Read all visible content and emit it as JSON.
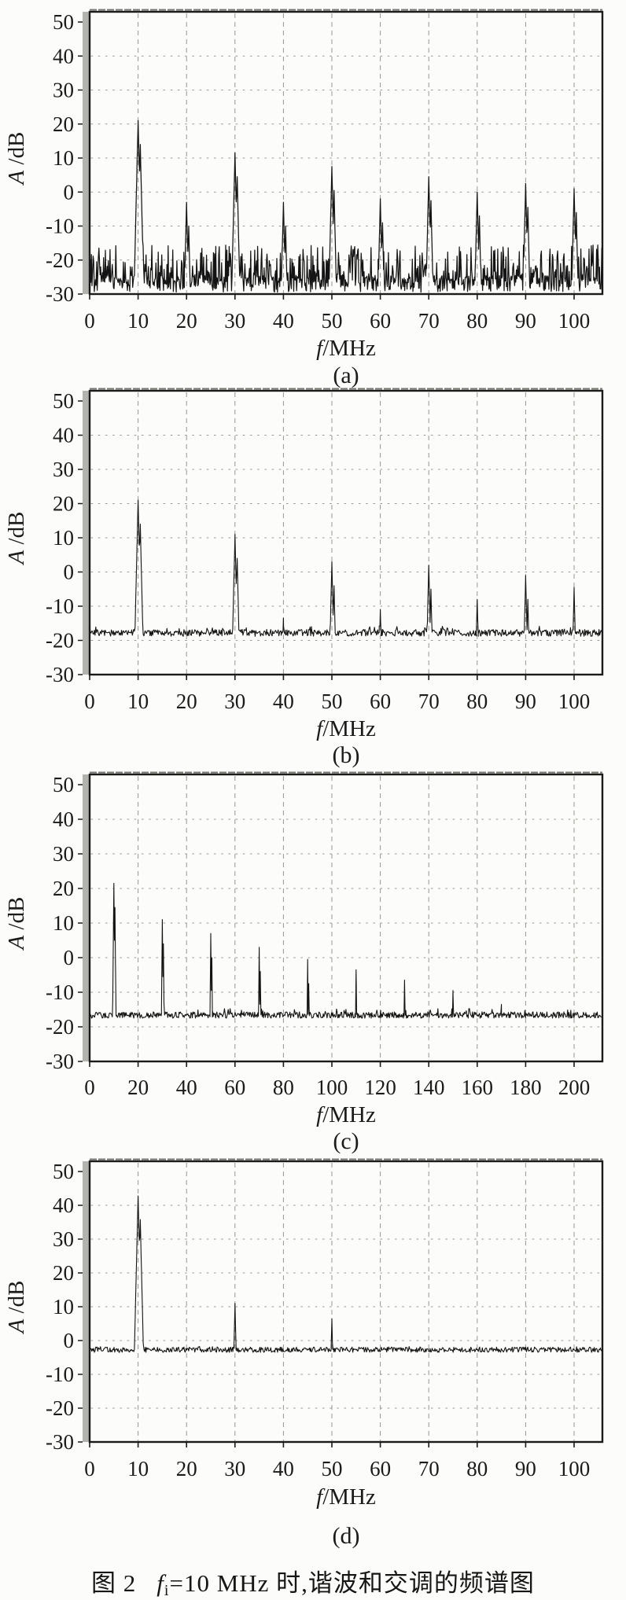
{
  "figure": {
    "caption": {
      "label": "图 2",
      "f_var": "f",
      "f_sub": "i",
      "text": "=10 MHz 时,谐波和交调的频谱图"
    },
    "ink_color": "#1b1b1b",
    "grid_color": "#979790",
    "paper_color": "#fcfcfa"
  },
  "chart_data": [
    {
      "id": "a",
      "type": "line",
      "sublabel": "(a)",
      "xlabel_var": "f",
      "xlabel_unit": "/MHz",
      "ylabel_var": "A",
      "ylabel_unit": " /dB",
      "x_ticks": [
        0,
        10,
        20,
        30,
        40,
        50,
        60,
        70,
        80,
        90,
        100
      ],
      "y_ticks": [
        50,
        40,
        30,
        20,
        10,
        0,
        -10,
        -20,
        -30
      ],
      "ylim": [
        -30,
        50
      ],
      "x_tick_max": 100,
      "grid": "dashed-vertical dotted-horizontal",
      "legend": "none",
      "noise_floor_dB": -27,
      "noise_character": "dense noise band -30..-15 dB with sideband bushes",
      "peaks": [
        {
          "f": 10,
          "a_dB": 21
        },
        {
          "f": 20,
          "a_dB": -3
        },
        {
          "f": 30,
          "a_dB": 11.5
        },
        {
          "f": 40,
          "a_dB": -3
        },
        {
          "f": 50,
          "a_dB": 7.5
        },
        {
          "f": 60,
          "a_dB": -2
        },
        {
          "f": 70,
          "a_dB": 4.5
        },
        {
          "f": 80,
          "a_dB": 0
        },
        {
          "f": 90,
          "a_dB": 2.5
        },
        {
          "f": 100,
          "a_dB": 1
        }
      ]
    },
    {
      "id": "b",
      "type": "line",
      "sublabel": "(b)",
      "xlabel_var": "f",
      "xlabel_unit": "/MHz",
      "ylabel_var": "A",
      "ylabel_unit": " /dB",
      "x_ticks": [
        0,
        10,
        20,
        30,
        40,
        50,
        60,
        70,
        80,
        90,
        100
      ],
      "y_ticks": [
        50,
        40,
        30,
        20,
        10,
        0,
        -10,
        -20,
        -30
      ],
      "ylim": [
        -30,
        50
      ],
      "x_tick_max": 100,
      "grid": "dashed-vertical dotted-horizontal",
      "legend": "none",
      "noise_floor_dB": -17.8,
      "noise_character": "flat thin noise floor",
      "peaks": [
        {
          "f": 10,
          "a_dB": 21
        },
        {
          "f": 30,
          "a_dB": 11
        },
        {
          "f": 40,
          "a_dB": -13.5
        },
        {
          "f": 50,
          "a_dB": 3
        },
        {
          "f": 60,
          "a_dB": -11
        },
        {
          "f": 70,
          "a_dB": 2
        },
        {
          "f": 80,
          "a_dB": -8
        },
        {
          "f": 90,
          "a_dB": -1
        },
        {
          "f": 100,
          "a_dB": -4.5
        }
      ]
    },
    {
      "id": "c",
      "type": "line",
      "sublabel": "(c)",
      "xlabel_var": "f",
      "xlabel_unit": "/MHz",
      "ylabel_var": "A",
      "ylabel_unit": " /dB",
      "x_ticks": [
        0,
        20,
        40,
        60,
        80,
        100,
        120,
        140,
        160,
        180,
        200
      ],
      "y_ticks": [
        50,
        40,
        30,
        20,
        10,
        0,
        -10,
        -20,
        -30
      ],
      "ylim": [
        -30,
        50
      ],
      "x_tick_max": 200,
      "grid": "dashed-vertical dotted-horizontal",
      "legend": "none",
      "noise_floor_dB": -16.6,
      "noise_character": "flat thin noise floor",
      "peaks": [
        {
          "f": 10,
          "a_dB": 21.5
        },
        {
          "f": 30,
          "a_dB": 11
        },
        {
          "f": 50,
          "a_dB": 7
        },
        {
          "f": 70,
          "a_dB": 3
        },
        {
          "f": 90,
          "a_dB": -0.5
        },
        {
          "f": 110,
          "a_dB": -3.5
        },
        {
          "f": 130,
          "a_dB": -6.5
        },
        {
          "f": 150,
          "a_dB": -9.5
        },
        {
          "f": 170,
          "a_dB": -13.5
        }
      ]
    },
    {
      "id": "d",
      "type": "line",
      "sublabel": "(d)",
      "xlabel_var": "f",
      "xlabel_unit": "/MHz",
      "ylabel_var": "A",
      "ylabel_unit": " /dB",
      "x_ticks": [
        0,
        10,
        20,
        30,
        40,
        50,
        60,
        70,
        80,
        90,
        100
      ],
      "y_ticks": [
        50,
        40,
        30,
        20,
        10,
        0,
        -10,
        -20,
        -30
      ],
      "ylim": [
        -30,
        50
      ],
      "x_tick_max": 100,
      "grid": "dashed-vertical dotted-horizontal",
      "legend": "none",
      "noise_floor_dB": -2.7,
      "noise_character": "flat thin noise floor",
      "peaks": [
        {
          "f": 10,
          "a_dB": 42.8
        },
        {
          "f": 30,
          "a_dB": 11
        },
        {
          "f": 50,
          "a_dB": 6.5
        }
      ]
    }
  ]
}
